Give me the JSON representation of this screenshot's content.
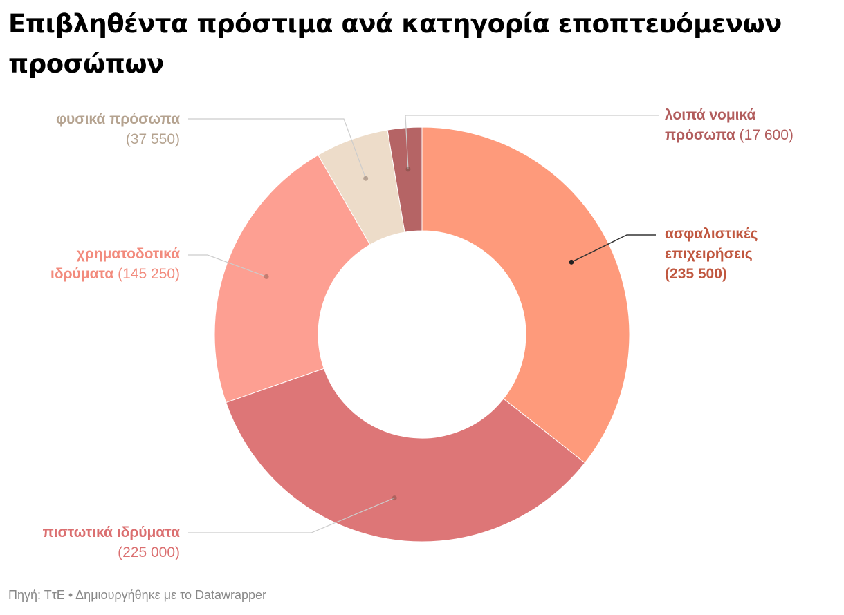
{
  "title": "Επιβληθέντα πρόστιμα ανά κατηγορία εποπτευόμενων προσώπων",
  "footer": {
    "source": "Πηγή: ΤτΕ",
    "separator": "•",
    "credit": "Δημιουργήθηκε με το Datawrapper"
  },
  "chart_data": {
    "type": "donut",
    "title": "Επιβληθέντα πρόστιμα ανά κατηγορία εποπτευόμενων προσώπων",
    "slices": [
      {
        "key": "asfalistikes",
        "name_lines": [
          "ασφαλιστικές",
          "επιχειρήσεις"
        ],
        "value": 235500,
        "value_label": "(235 500)",
        "color": "#fe9a7b",
        "label_color": "#c0573f",
        "bold_value": true
      },
      {
        "key": "pistotika",
        "name_lines": [
          "πιστωτικά ιδρύματα"
        ],
        "value": 225000,
        "value_label": "(225 000)",
        "color": "#dd7677",
        "label_color": "#db6f70",
        "bold_value": false
      },
      {
        "key": "chrimatodotika",
        "name_lines": [
          "χρηματοδοτικά",
          "ιδρύματα"
        ],
        "value": 145250,
        "value_label": "(145 250)",
        "color": "#fd9f92",
        "label_color": "#f28b7d",
        "bold_value": false
      },
      {
        "key": "fysika",
        "name_lines": [
          "φυσικά πρόσωπα"
        ],
        "value": 37550,
        "value_label": "(37 550)",
        "color": "#eddcc9",
        "label_color": "#b5a390",
        "bold_value": false
      },
      {
        "key": "loipa",
        "name_lines": [
          "λοιπά νομικά",
          "πρόσωπα"
        ],
        "value": 17600,
        "value_label": "(17 600)",
        "color": "#b56465",
        "label_color": "#b25d5d",
        "bold_value": false
      }
    ]
  }
}
